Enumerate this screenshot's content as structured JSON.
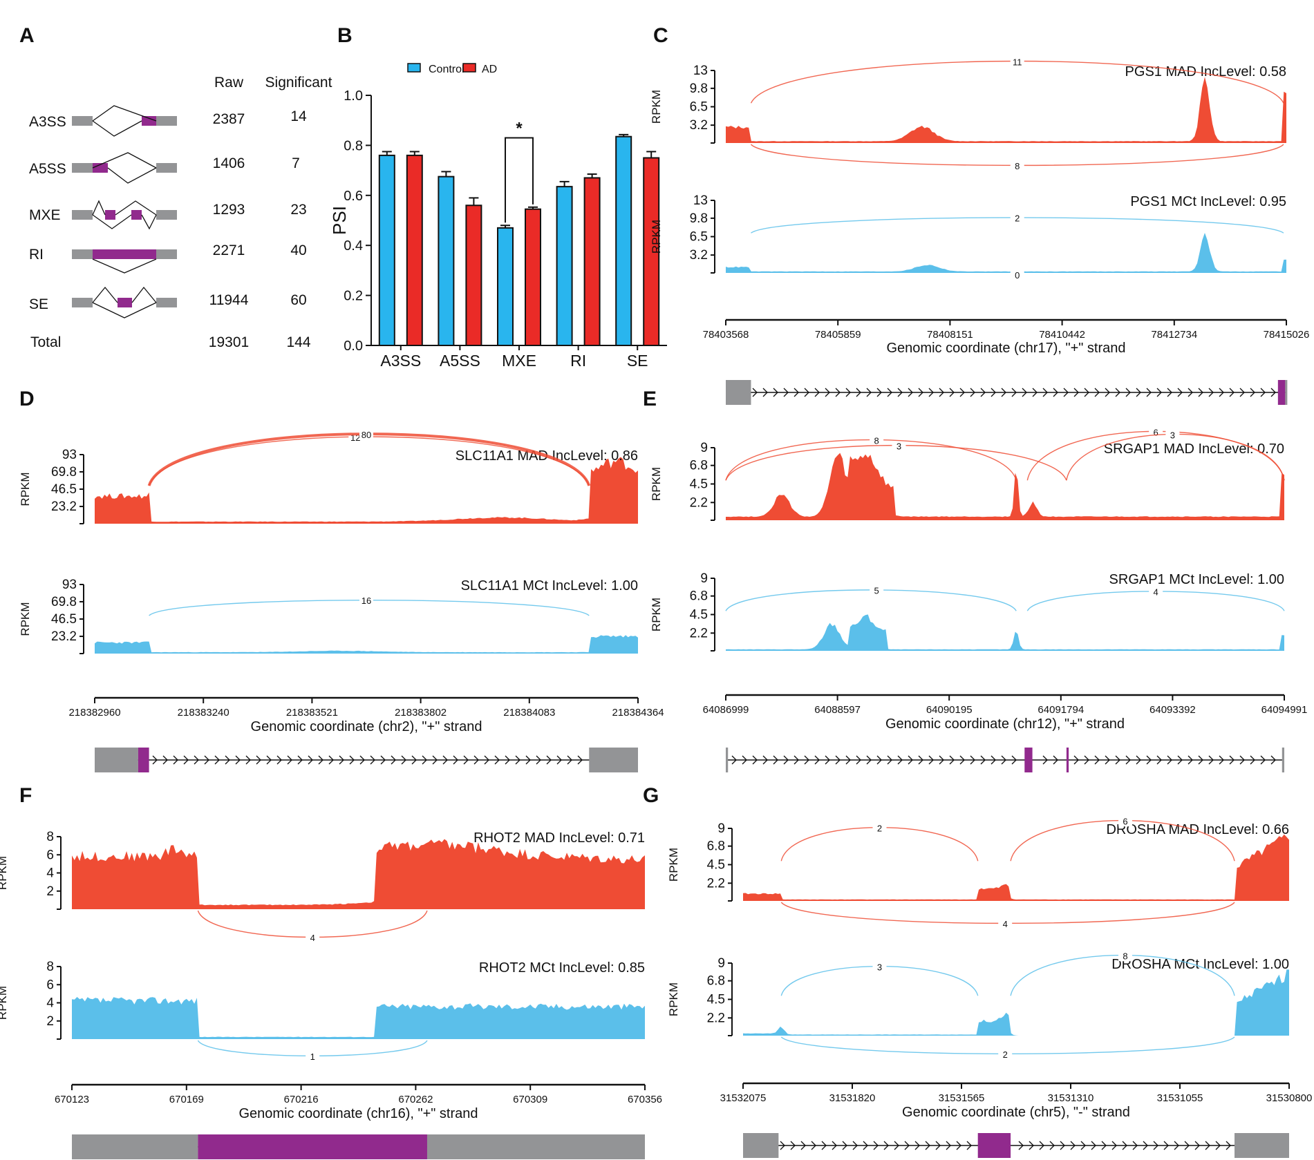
{
  "colors": {
    "red": "#ef4c34",
    "blue": "#5bbfea",
    "purple": "#912a8d",
    "gray": "#939496",
    "ctrl": "#29b5ee",
    "ad": "#ea2b27"
  },
  "panel_letters": [
    "A",
    "B",
    "C",
    "D",
    "E",
    "F",
    "G"
  ],
  "table": {
    "col_raw": "Raw",
    "col_sig": "Significant",
    "rows": [
      {
        "type": "A3SS",
        "raw": "2387",
        "sig": "14"
      },
      {
        "type": "A5SS",
        "raw": "1406",
        "sig": "7"
      },
      {
        "type": "MXE",
        "raw": "1293",
        "sig": "23"
      },
      {
        "type": "RI",
        "raw": "2271",
        "sig": "40"
      },
      {
        "type": "SE",
        "raw": "11944",
        "sig": "60"
      }
    ],
    "total": {
      "type": "Total",
      "raw": "19301",
      "sig": "144"
    }
  },
  "sashimi": [
    {
      "id": "C",
      "ylabel": "RPKM",
      "yticks": [
        "13",
        "9.8",
        "6.5",
        "3.2"
      ],
      "xticks": [
        "78403568",
        "78405859",
        "78408151",
        "78410442",
        "78412734",
        "78415026"
      ],
      "xtitle": "Genomic coordinate (chr17), \"+\" strand",
      "tracks": [
        {
          "title": "PGS1 MAD IncLevel: 0.58",
          "junctions": [
            "11",
            "8"
          ]
        },
        {
          "title": "PGS1 MCt IncLevel: 0.95",
          "junctions": [
            "2",
            "0"
          ]
        }
      ]
    },
    {
      "id": "D",
      "ylabel": "RPKM",
      "yticks": [
        "93",
        "69.8",
        "46.5",
        "23.2"
      ],
      "xticks": [
        "218382960",
        "218383240",
        "218383521",
        "218383802",
        "218384083",
        "218384364"
      ],
      "xtitle": "Genomic coordinate (chr2), \"+\" strand",
      "tracks": [
        {
          "title": "SLC11A1 MAD IncLevel: 0.86",
          "junctions": [
            "12",
            "80"
          ]
        },
        {
          "title": "SLC11A1 MCt IncLevel: 1.00",
          "junctions": [
            "16"
          ]
        }
      ]
    },
    {
      "id": "E",
      "ylabel": "RPKM",
      "yticks": [
        "9",
        "6.8",
        "4.5",
        "2.2"
      ],
      "xticks": [
        "64086999",
        "64088597",
        "64090195",
        "64091794",
        "64093392",
        "64094991"
      ],
      "xtitle": "Genomic coordinate (chr12), \"+\" strand",
      "tracks": [
        {
          "title": "SRGAP1 MAD IncLevel: 0.70",
          "junctions": [
            "8",
            "3",
            "6",
            "3"
          ]
        },
        {
          "title": "SRGAP1 MCt IncLevel: 1.00",
          "junctions": [
            "5",
            "4"
          ]
        }
      ]
    },
    {
      "id": "F",
      "ylabel": "RPKM",
      "yticks": [
        "8",
        "6",
        "4",
        "2"
      ],
      "xticks": [
        "670123",
        "670169",
        "670216",
        "670262",
        "670309",
        "670356"
      ],
      "xtitle": "Genomic coordinate (chr16), \"+\" strand",
      "tracks": [
        {
          "title": "RHOT2 MAD IncLevel: 0.71",
          "junctions": [
            "4"
          ]
        },
        {
          "title": "RHOT2 MCt IncLevel: 0.85",
          "junctions": [
            "1"
          ]
        }
      ]
    },
    {
      "id": "G",
      "ylabel": "RPKM",
      "yticks": [
        "9",
        "6.8",
        "4.5",
        "2.2"
      ],
      "xticks": [
        "31532075",
        "31531820",
        "31531565",
        "31531310",
        "31531055",
        "31530800"
      ],
      "xtitle": "Genomic coordinate (chr5), \"-\" strand",
      "tracks": [
        {
          "title": "DROSHA MAD IncLevel: 0.66",
          "junctions": [
            "2",
            "6",
            "4"
          ]
        },
        {
          "title": "DROSHA MCt IncLevel: 1.00",
          "junctions": [
            "3",
            "8",
            "2"
          ]
        }
      ]
    }
  ],
  "chart_data": [
    {
      "type": "bar",
      "panel": "B",
      "ylabel": "PSI",
      "ylim": [
        0,
        1.0
      ],
      "yticks": [
        "0.0",
        "0.2",
        "0.4",
        "0.6",
        "0.8",
        "1.0"
      ],
      "categories": [
        "A3SS",
        "A5SS",
        "MXE",
        "RI",
        "SE"
      ],
      "series": [
        {
          "name": "Control",
          "values": [
            0.76,
            0.675,
            0.47,
            0.635,
            0.835
          ],
          "errors": [
            0.015,
            0.02,
            0.01,
            0.02,
            0.008
          ]
        },
        {
          "name": "AD",
          "values": [
            0.76,
            0.56,
            0.545,
            0.67,
            0.75
          ],
          "errors": [
            0.015,
            0.03,
            0.008,
            0.015,
            0.025
          ]
        }
      ],
      "significance": {
        "category": "MXE",
        "label": "*"
      }
    }
  ]
}
